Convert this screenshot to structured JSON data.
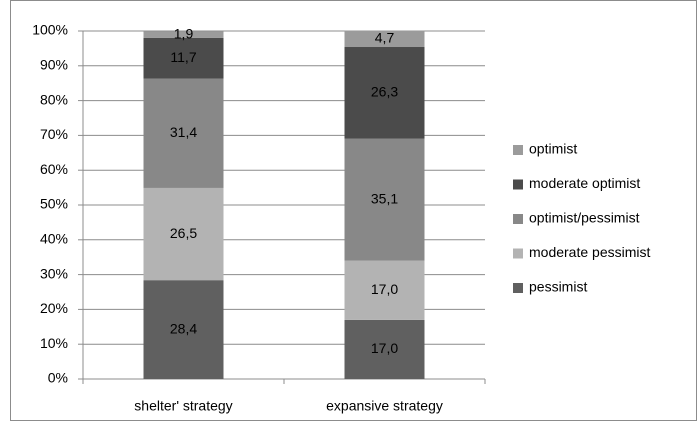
{
  "chart_data": {
    "type": "stacked-bar",
    "categories": [
      "shelter' strategy",
      "expansive strategy"
    ],
    "series": [
      {
        "name": "pessimist",
        "color": "#606060",
        "values": [
          28.4,
          17.0
        ],
        "value_labels": [
          "28,4",
          "17,0"
        ]
      },
      {
        "name": "moderate pessimist",
        "color": "#b3b3b3",
        "values": [
          26.5,
          17.0
        ],
        "value_labels": [
          "26,5",
          "17,0"
        ]
      },
      {
        "name": "optimist/pessimist",
        "color": "#888888",
        "values": [
          31.4,
          35.1
        ],
        "value_labels": [
          "31,4",
          "35,1"
        ]
      },
      {
        "name": "moderate optimist",
        "color": "#4b4b4b",
        "values": [
          11.7,
          26.3
        ],
        "value_labels": [
          "11,7",
          "26,3"
        ]
      },
      {
        "name": "optimist",
        "color": "#9b9b9b",
        "values": [
          1.9,
          4.7
        ],
        "value_labels": [
          "1,9",
          "4,7"
        ]
      }
    ],
    "ylim": [
      0,
      100
    ],
    "yticks": [
      {
        "value": 0,
        "label": "0%"
      },
      {
        "value": 10,
        "label": "10%"
      },
      {
        "value": 20,
        "label": "20%"
      },
      {
        "value": 30,
        "label": "30%"
      },
      {
        "value": 40,
        "label": "40%"
      },
      {
        "value": 50,
        "label": "50%"
      },
      {
        "value": 60,
        "label": "60%"
      },
      {
        "value": 70,
        "label": "70%"
      },
      {
        "value": 80,
        "label": "80%"
      },
      {
        "value": 90,
        "label": "90%"
      },
      {
        "value": 100,
        "label": "100%"
      }
    ],
    "grid": true,
    "legend": "right"
  }
}
